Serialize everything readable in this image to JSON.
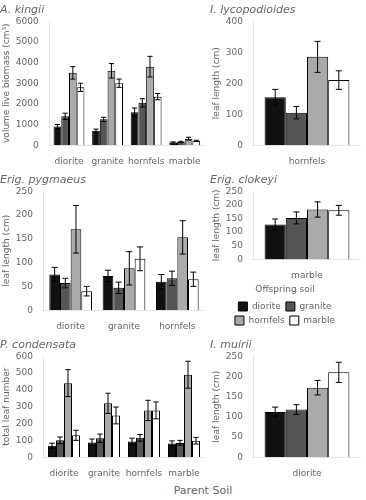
{
  "xlabel": "Parent Soil",
  "chart_data": [
    {
      "type": "bar",
      "title": "A. kingii",
      "ylabel": "volume live biomass (cm³)",
      "categories": [
        "diorite",
        "granite",
        "hornfels",
        "marble"
      ],
      "series": [
        {
          "color": "#111111",
          "values": [
            900,
            700,
            1600,
            130
          ],
          "errors": [
            100,
            80,
            200,
            30
          ]
        },
        {
          "color": "#555555",
          "values": [
            1400,
            1250,
            2050,
            155
          ],
          "errors": [
            150,
            100,
            200,
            30
          ]
        },
        {
          "color": "#aaaaaa",
          "values": [
            3500,
            3600,
            3800,
            315
          ],
          "errors": [
            300,
            350,
            500,
            70
          ]
        },
        {
          "color": "#ffffff",
          "values": [
            2800,
            3000,
            2350,
            210
          ],
          "errors": [
            200,
            200,
            150,
            30
          ]
        }
      ],
      "ylim": [
        0,
        6000
      ],
      "yticks": [
        0,
        1000,
        2000,
        3000,
        4000,
        5000,
        6000
      ],
      "grid": false
    },
    {
      "type": "bar",
      "title": "I. lycopodioides",
      "ylabel": "leaf length (cm)",
      "categories": [
        "hornfels"
      ],
      "series": [
        {
          "color": "#111111",
          "values": [
            155
          ],
          "errors": [
            25
          ]
        },
        {
          "color": "#555555",
          "values": [
            105
          ],
          "errors": [
            20
          ]
        },
        {
          "color": "#aaaaaa",
          "values": [
            285
          ],
          "errors": [
            50
          ]
        },
        {
          "color": "#ffffff",
          "values": [
            210
          ],
          "errors": [
            30
          ]
        }
      ],
      "ylim": [
        0,
        400
      ],
      "yticks": [
        0,
        100,
        200,
        300,
        400
      ],
      "grid": false
    },
    {
      "type": "bar",
      "title": "Erig. pygmaeus",
      "ylabel": "leaf length (cm)",
      "categories": [
        "diorite",
        "granite",
        "hornfels"
      ],
      "series": [
        {
          "color": "#111111",
          "values": [
            75,
            72,
            60
          ],
          "errors": [
            15,
            12,
            15
          ]
        },
        {
          "color": "#555555",
          "values": [
            57,
            47,
            67
          ],
          "errors": [
            10,
            12,
            15
          ]
        },
        {
          "color": "#aaaaaa",
          "values": [
            170,
            88,
            153
          ],
          "errors": [
            50,
            35,
            35
          ]
        },
        {
          "color": "#ffffff",
          "values": [
            40,
            108,
            65
          ],
          "errors": [
            10,
            25,
            15
          ]
        }
      ],
      "ylim": [
        0,
        250
      ],
      "yticks": [
        0,
        50,
        100,
        150,
        200,
        250
      ],
      "grid": false
    },
    {
      "type": "bar",
      "title": "Erig. clokeyi",
      "ylabel": "leaf length (cm)",
      "categories": [
        "marble"
      ],
      "series": [
        {
          "name": "diorite",
          "color": "#111111",
          "values": [
            128
          ],
          "errors": [
            20
          ]
        },
        {
          "name": "granite",
          "color": "#555555",
          "values": [
            152
          ],
          "errors": [
            22
          ]
        },
        {
          "name": "hornfels",
          "color": "#aaaaaa",
          "values": [
            183
          ],
          "errors": [
            28
          ]
        },
        {
          "name": "marble",
          "color": "#ffffff",
          "values": [
            180
          ],
          "errors": [
            18
          ]
        }
      ],
      "ylim": [
        0,
        250
      ],
      "yticks": [
        0,
        50,
        100,
        150,
        200,
        250
      ],
      "grid": false,
      "legend": "bottom",
      "legend_title": "Offspring soil"
    },
    {
      "type": "bar",
      "title": "P. condensata",
      "ylabel": "total leaf number",
      "categories": [
        "diorite",
        "granite",
        "hornfels",
        "marble"
      ],
      "series": [
        {
          "color": "#111111",
          "values": [
            68,
            88,
            93,
            82
          ],
          "errors": [
            15,
            20,
            20,
            15
          ]
        },
        {
          "color": "#555555",
          "values": [
            100,
            112,
            115,
            85
          ],
          "errors": [
            20,
            25,
            20,
            15
          ]
        },
        {
          "color": "#aaaaaa",
          "values": [
            440,
            320,
            278,
            490
          ],
          "errors": [
            80,
            60,
            60,
            80
          ]
        },
        {
          "color": "#ffffff",
          "values": [
            130,
            248,
            278,
            98
          ],
          "errors": [
            30,
            50,
            50,
            20
          ]
        }
      ],
      "ylim": [
        0,
        600
      ],
      "yticks": [
        0,
        100,
        200,
        300,
        400,
        500,
        600
      ],
      "grid": false
    },
    {
      "type": "bar",
      "title": "I. muirii",
      "ylabel": "leaf length (cm)",
      "categories": [
        "diorite"
      ],
      "series": [
        {
          "color": "#111111",
          "values": [
            112
          ],
          "errors": [
            12
          ]
        },
        {
          "color": "#555555",
          "values": [
            118
          ],
          "errors": [
            12
          ]
        },
        {
          "color": "#aaaaaa",
          "values": [
            172
          ],
          "errors": [
            18
          ]
        },
        {
          "color": "#ffffff",
          "values": [
            210
          ],
          "errors": [
            25
          ]
        }
      ],
      "ylim": [
        0,
        250
      ],
      "yticks": [
        0,
        50,
        100,
        150,
        200,
        250
      ],
      "grid": false
    }
  ]
}
